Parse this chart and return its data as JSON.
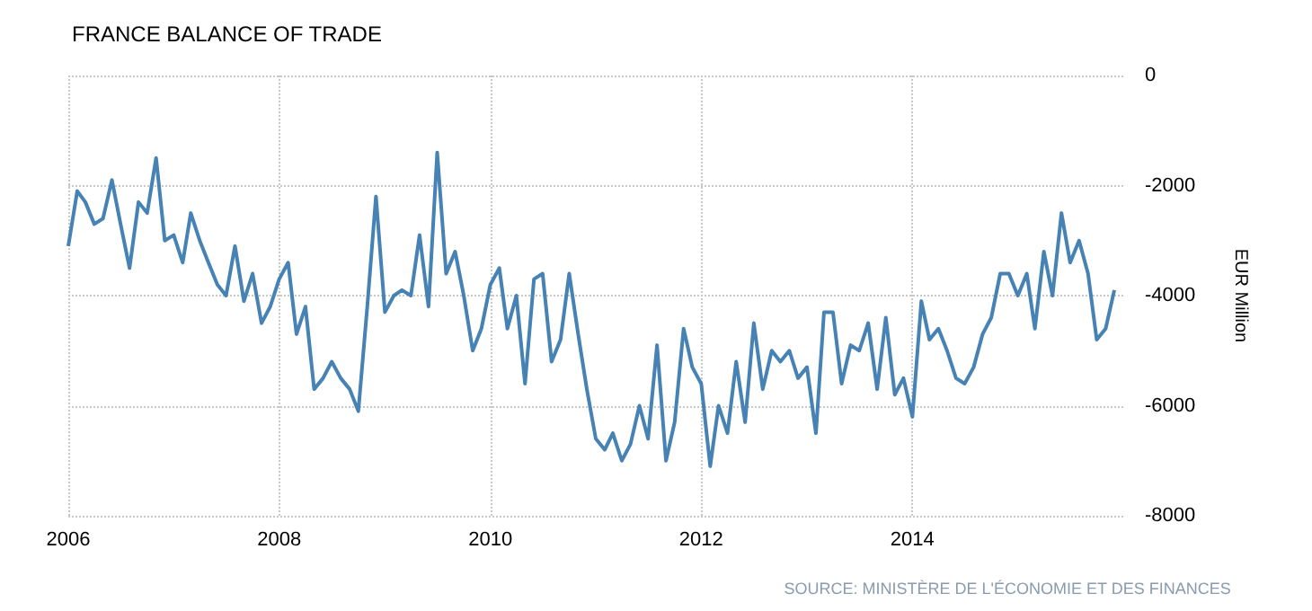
{
  "chart_data": {
    "type": "line",
    "title": "FRANCE BALANCE OF TRADE",
    "ylabel": "EUR Million",
    "annotations": [
      "SOURCE: MINISTÈRE DE L'ÉCONOMIE ET DES FINANCES"
    ],
    "x": [
      "2006-01",
      "2006-02",
      "2006-03",
      "2006-04",
      "2006-05",
      "2006-06",
      "2006-07",
      "2006-08",
      "2006-09",
      "2006-10",
      "2006-11",
      "2006-12",
      "2007-01",
      "2007-02",
      "2007-03",
      "2007-04",
      "2007-05",
      "2007-06",
      "2007-07",
      "2007-08",
      "2007-09",
      "2007-10",
      "2007-11",
      "2007-12",
      "2008-01",
      "2008-02",
      "2008-03",
      "2008-04",
      "2008-05",
      "2008-06",
      "2008-07",
      "2008-08",
      "2008-09",
      "2008-10",
      "2008-11",
      "2008-12",
      "2009-01",
      "2009-02",
      "2009-03",
      "2009-04",
      "2009-05",
      "2009-06",
      "2009-07",
      "2009-08",
      "2009-09",
      "2009-10",
      "2009-11",
      "2009-12",
      "2010-01",
      "2010-02",
      "2010-03",
      "2010-04",
      "2010-05",
      "2010-06",
      "2010-07",
      "2010-08",
      "2010-09",
      "2010-10",
      "2010-11",
      "2010-12",
      "2011-01",
      "2011-02",
      "2011-03",
      "2011-04",
      "2011-05",
      "2011-06",
      "2011-07",
      "2011-08",
      "2011-09",
      "2011-10",
      "2011-11",
      "2011-12",
      "2012-01",
      "2012-02",
      "2012-03",
      "2012-04",
      "2012-05",
      "2012-06",
      "2012-07",
      "2012-08",
      "2012-09",
      "2012-10",
      "2012-11",
      "2012-12",
      "2013-01",
      "2013-02",
      "2013-03",
      "2013-04",
      "2013-05",
      "2013-06",
      "2013-07",
      "2013-08",
      "2013-09",
      "2013-10",
      "2013-11",
      "2013-12",
      "2014-01",
      "2014-02",
      "2014-03",
      "2014-04",
      "2014-05",
      "2014-06",
      "2014-07",
      "2014-08",
      "2014-09",
      "2014-10",
      "2014-11",
      "2014-12",
      "2015-01",
      "2015-02",
      "2015-03",
      "2015-04",
      "2015-05",
      "2015-06",
      "2015-07",
      "2015-08",
      "2015-09",
      "2015-10",
      "2015-11",
      "2015-12"
    ],
    "series": [
      {
        "color": "#4682b4",
        "values": [
          -3100,
          -2100,
          -2300,
          -2700,
          -2600,
          -1900,
          -2700,
          -3500,
          -2300,
          -2500,
          -1500,
          -3000,
          -2900,
          -3400,
          -2500,
          -3000,
          -3400,
          -3800,
          -4000,
          -3100,
          -4100,
          -3600,
          -4500,
          -4200,
          -3700,
          -3400,
          -4700,
          -4200,
          -5700,
          -5500,
          -5200,
          -5500,
          -5700,
          -6100,
          -4200,
          -2200,
          -4300,
          -4000,
          -3900,
          -4000,
          -2900,
          -4200,
          -1400,
          -3600,
          -3200,
          -4000,
          -5000,
          -4600,
          -3800,
          -3500,
          -4600,
          -4000,
          -5600,
          -3700,
          -3600,
          -5200,
          -4800,
          -3600,
          -4700,
          -5700,
          -6600,
          -6800,
          -6500,
          -7000,
          -6700,
          -6000,
          -6600,
          -4900,
          -7000,
          -6300,
          -4600,
          -5300,
          -5600,
          -7100,
          -6000,
          -6500,
          -5200,
          -6300,
          -4500,
          -5700,
          -5000,
          -5200,
          -5000,
          -5500,
          -5300,
          -6500,
          -4300,
          -4300,
          -5600,
          -4900,
          -5000,
          -4500,
          -5700,
          -4400,
          -5800,
          -5500,
          -6200,
          -4100,
          -4800,
          -4600,
          -5000,
          -5500,
          -5600,
          -5300,
          -4700,
          -4400,
          -3600,
          -3600,
          -4000,
          -3600,
          -4600,
          -3200,
          -4000,
          -2500,
          -3400,
          -3000,
          -3600,
          -4800,
          -4600,
          -3900
        ]
      }
    ],
    "xlim": [
      "2006-01",
      "2016-01"
    ],
    "xticks": [
      "2006",
      "2008",
      "2010",
      "2012",
      "2014"
    ],
    "ylim": [
      -8000,
      0
    ],
    "yticks": [
      0,
      -2000,
      -4000,
      -6000,
      -8000
    ],
    "grid": true,
    "marker": "none",
    "line_style": "solid"
  }
}
